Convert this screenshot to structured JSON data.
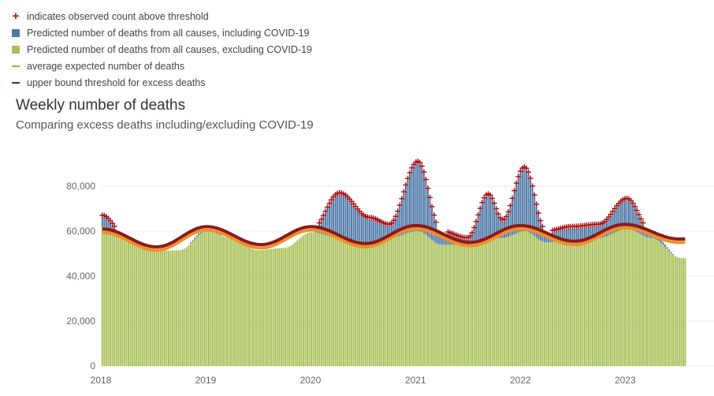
{
  "legend": {
    "items": [
      {
        "label": "indicates observed count above threshold",
        "kind": "plus",
        "color": "#a50f15"
      },
      {
        "label": "Predicted number of deaths from all causes, including COVID-19",
        "kind": "box",
        "color": "#4e79a7"
      },
      {
        "label": "Predicted number of deaths from all causes, excluding COVID-19",
        "kind": "box",
        "color": "#a9c15a"
      },
      {
        "label": "average expected number of deaths",
        "kind": "line",
        "color": "#f28e2b"
      },
      {
        "label": "upper bound threshold for excess deaths",
        "kind": "line",
        "color": "#8b1a1a"
      }
    ]
  },
  "chart_title": "Weekly number of deaths",
  "chart_subtitle": "Comparing excess deaths including/excluding COVID-19",
  "chart_data": {
    "type": "bar",
    "title": "Weekly number of deaths",
    "subtitle": "Comparing excess deaths including/excluding COVID-19",
    "xlabel": "",
    "ylabel": "",
    "x_tick_labels": [
      "2018",
      "2019",
      "2020",
      "2021",
      "2022",
      "2023"
    ],
    "y_tick_labels": [
      "0",
      "20,000",
      "40,000",
      "60,000",
      "80,000"
    ],
    "y_ticks": [
      0,
      20000,
      40000,
      60000,
      80000
    ],
    "ylim": [
      0,
      90000
    ],
    "grid": true,
    "legend_position": "top-left",
    "colors": {
      "including_covid": "#4e79a7",
      "excluding_covid": "#a9c15a",
      "average_expected": "#f28e2b",
      "upper_threshold": "#8b1a1a",
      "above_threshold_marker": "#a50f15"
    },
    "series": [
      {
        "name": "Predicted number of deaths from all causes, including COVID-19",
        "x": [
          "2018-01-06",
          "2018-04-01",
          "2018-07-01",
          "2018-10-01",
          "2019-01-06",
          "2019-04-01",
          "2019-07-01",
          "2019-10-01",
          "2020-01-04",
          "2020-04-11",
          "2020-07-25",
          "2020-10-01",
          "2021-01-09",
          "2021-04-01",
          "2021-07-01",
          "2021-09-11",
          "2021-11-01",
          "2022-01-15",
          "2022-04-01",
          "2022-07-01",
          "2022-10-01",
          "2023-01-07",
          "2023-04-01",
          "2023-07-15"
        ],
        "values": [
          66000,
          56000,
          51000,
          51500,
          61000,
          57000,
          51500,
          52500,
          59500,
          76000,
          65000,
          62000,
          90000,
          59000,
          56000,
          75500,
          64000,
          87500,
          59000,
          61000,
          62000,
          73500,
          59000,
          48000
        ]
      },
      {
        "name": "Predicted number of deaths from all causes, excluding COVID-19",
        "x": [
          "2018-01-06",
          "2018-04-01",
          "2018-07-01",
          "2018-10-01",
          "2019-01-06",
          "2019-04-01",
          "2019-07-01",
          "2019-10-01",
          "2020-01-04",
          "2020-04-11",
          "2020-07-25",
          "2020-10-01",
          "2021-01-09",
          "2021-04-01",
          "2021-07-01",
          "2021-09-11",
          "2021-11-01",
          "2022-01-15",
          "2022-04-01",
          "2022-07-01",
          "2022-10-01",
          "2023-01-07",
          "2023-04-01",
          "2023-07-15"
        ],
        "values": [
          62000,
          56000,
          51000,
          51500,
          60000,
          57000,
          51500,
          52500,
          59500,
          57000,
          55000,
          57000,
          60000,
          54000,
          54000,
          57000,
          57000,
          60000,
          55000,
          56000,
          57000,
          61000,
          57000,
          48000
        ]
      },
      {
        "name": "average expected number of deaths",
        "x": [
          "2018-01-06",
          "2018-07-14",
          "2019-01-05",
          "2019-07-13",
          "2020-01-04",
          "2020-07-11",
          "2021-01-02",
          "2021-07-10",
          "2022-01-01",
          "2022-07-09",
          "2022-12-31",
          "2023-07-08"
        ],
        "values": [
          59500,
          51500,
          60500,
          52500,
          60500,
          53000,
          61000,
          53500,
          61000,
          54000,
          61500,
          55000
        ]
      },
      {
        "name": "upper bound threshold for excess deaths",
        "x": [
          "2018-01-06",
          "2018-07-14",
          "2019-01-05",
          "2019-07-13",
          "2020-01-04",
          "2020-07-11",
          "2021-01-02",
          "2021-07-10",
          "2022-01-01",
          "2022-07-09",
          "2022-12-31",
          "2023-07-08"
        ],
        "values": [
          61000,
          53000,
          62000,
          54000,
          62000,
          54500,
          62500,
          55000,
          62500,
          55500,
          63000,
          56500
        ]
      }
    ]
  }
}
